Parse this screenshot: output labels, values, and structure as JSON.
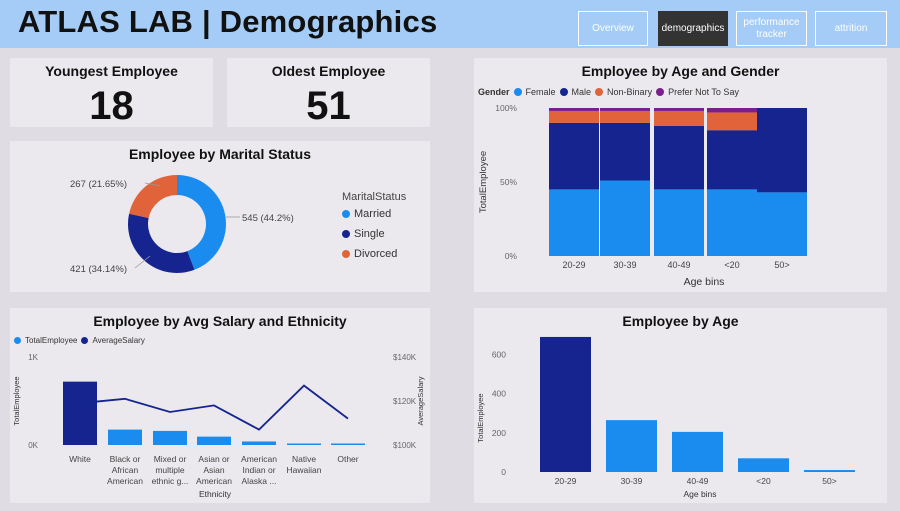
{
  "header": {
    "title": "ATLAS LAB | Demographics",
    "nav": [
      {
        "label": "Overview",
        "active": false
      },
      {
        "label": "demographics",
        "active": true
      },
      {
        "label": "performance tracker",
        "active": false
      },
      {
        "label": "attrition",
        "active": false
      }
    ]
  },
  "kpis": {
    "youngest": {
      "label": "Youngest Employee",
      "value": "18"
    },
    "oldest": {
      "label": "Oldest Employee",
      "value": "51"
    }
  },
  "colors": {
    "female": "#1a8cf0",
    "male": "#15248f",
    "nonbinary": "#e0633a",
    "prefer_not": "#7a1f8c",
    "married": "#1a8cf0",
    "single": "#15248f",
    "divorced": "#e0633a",
    "line": "#15248f"
  },
  "chart_data": [
    {
      "id": "marital",
      "type": "pie",
      "title": "Employee by Marital Status",
      "legend_title": "MaritalStatus",
      "slices": [
        {
          "name": "Married",
          "value": 545,
          "label": "545 (44.2%)"
        },
        {
          "name": "Single",
          "value": 421,
          "label": "421 (34.14%)"
        },
        {
          "name": "Divorced",
          "value": 267,
          "label": "267 (21.65%)"
        }
      ]
    },
    {
      "id": "age_gender",
      "type": "bar",
      "stacked": "100%",
      "title": "Employee by Age and Gender",
      "legend_title": "Gender",
      "xlabel": "Age bins",
      "ylabel": "TotalEmployee",
      "yticks": [
        "100%",
        "50%",
        "0%"
      ],
      "categories": [
        "20-29",
        "30-39",
        "40-49",
        "<20",
        "50>"
      ],
      "series": [
        {
          "name": "Female",
          "values": [
            45,
            51,
            45,
            45,
            43
          ]
        },
        {
          "name": "Male",
          "values": [
            45,
            39,
            43,
            40,
            57
          ]
        },
        {
          "name": "Non-Binary",
          "values": [
            8,
            8,
            10,
            12,
            0
          ]
        },
        {
          "name": "Prefer Not To Say",
          "values": [
            2,
            2,
            2,
            3,
            0
          ]
        }
      ]
    },
    {
      "id": "salary_ethnicity",
      "type": "bar",
      "title": "Employee by Avg Salary and Ethnicity",
      "xlabel": "Ethnicity",
      "ylabel": "TotalEmployee",
      "y2label": "AverageSalary",
      "yticks": [
        "1K",
        "0K"
      ],
      "y2ticks": [
        "$140K",
        "$120K",
        "$100K"
      ],
      "ylim": [
        0,
        1000
      ],
      "y2lim": [
        100000,
        140000
      ],
      "legend": [
        "TotalEmployee",
        "AverageSalary"
      ],
      "categories": [
        "White",
        "Black or African American",
        "Mixed or multiple ethnic g...",
        "Asian or Asian American",
        "American Indian or Alaska ...",
        "Native Hawaiian",
        "Other"
      ],
      "category_lines": [
        [
          "White"
        ],
        [
          "Black or",
          "African",
          "American"
        ],
        [
          "Mixed or",
          "multiple",
          "ethnic g..."
        ],
        [
          "Asian or",
          "Asian",
          "American"
        ],
        [
          "American",
          "Indian or",
          "Alaska ..."
        ],
        [
          "Native",
          "Hawaiian"
        ],
        [
          "Other"
        ]
      ],
      "series": [
        {
          "name": "TotalEmployee",
          "kind": "bar",
          "values": [
            720,
            175,
            160,
            95,
            40,
            15,
            10
          ]
        },
        {
          "name": "AverageSalary",
          "kind": "line",
          "values": [
            119000,
            121000,
            115000,
            118000,
            107000,
            127000,
            112000
          ]
        }
      ]
    },
    {
      "id": "by_age",
      "type": "bar",
      "title": "Employee by Age",
      "xlabel": "Age bins",
      "ylabel": "TotalEmployee",
      "ylim": [
        0,
        700
      ],
      "yticks": [
        600,
        400,
        200,
        0
      ],
      "categories": [
        "20-29",
        "30-39",
        "40-49",
        "<20",
        "50>"
      ],
      "values": [
        690,
        265,
        205,
        70,
        10
      ],
      "highlight_index": 0
    }
  ]
}
